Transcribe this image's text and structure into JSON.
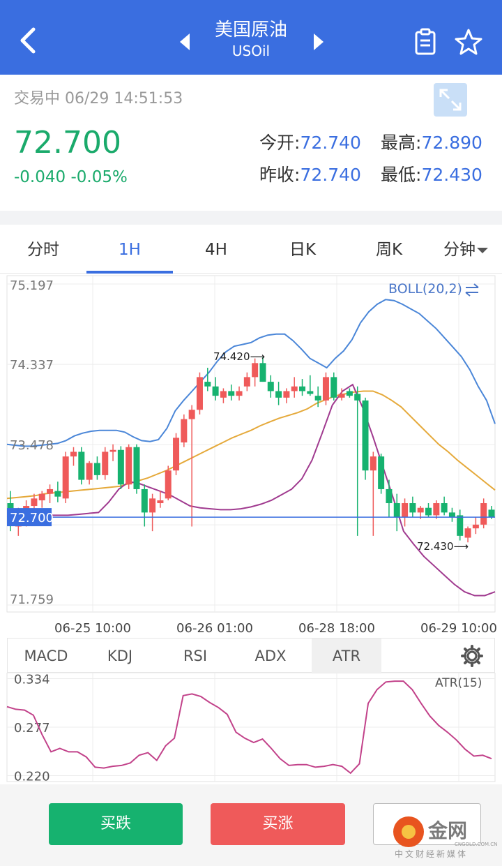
{
  "header": {
    "title": "美国原油",
    "subtitle": "USOil",
    "icons": [
      "back-icon",
      "prev-icon",
      "next-icon",
      "note-icon",
      "star-icon"
    ]
  },
  "quote": {
    "status": "交易中 06/29 14:51:53",
    "price": "72.700",
    "change": "-0.040",
    "change_pct": "-0.05%",
    "open_label": "今开:",
    "open": "72.740",
    "high_label": "最高:",
    "high": "72.890",
    "prev_close_label": "昨收:",
    "prev_close": "72.740",
    "low_label": "最低:",
    "low": "72.430",
    "colors": {
      "up": "#ef5a5a",
      "down": "#16b26f",
      "accent": "#3a6ee0"
    }
  },
  "tabs": [
    {
      "label": "分时"
    },
    {
      "label": "1H"
    },
    {
      "label": "4H"
    },
    {
      "label": "日K"
    },
    {
      "label": "周K"
    },
    {
      "label": "分钟"
    }
  ],
  "chart_data": [
    {
      "type": "candlestick",
      "indicator_label": "BOLL(20,2)",
      "indicator_icon": "swap-icon",
      "y_ticks": [
        "75.197",
        "74.337",
        "73.478",
        "72.700",
        "71.759"
      ],
      "ylim": [
        71.759,
        75.197
      ],
      "x_ticks": [
        "06-25 10:00",
        "06-26 01:00",
        "06-28 18:00",
        "06-29 10:00"
      ],
      "current_price": 72.7,
      "current_price_label": "72.700",
      "annotations": [
        {
          "text": "74.420⟶",
          "value": 74.42
        },
        {
          "text": "72.430⟶",
          "value": 72.43
        }
      ],
      "series": [
        {
          "kind": "ohlc",
          "values": [
            [
              72.85,
              72.98,
              72.55,
              72.65
            ],
            [
              72.6,
              72.8,
              72.5,
              72.75
            ],
            [
              72.7,
              72.88,
              72.6,
              72.82
            ],
            [
              72.82,
              72.95,
              72.72,
              72.9
            ],
            [
              72.88,
              72.98,
              72.8,
              72.95
            ],
            [
              72.95,
              73.05,
              72.85,
              73.0
            ],
            [
              72.98,
              73.08,
              72.86,
              72.92
            ],
            [
              72.9,
              73.4,
              72.85,
              73.35
            ],
            [
              73.35,
              73.45,
              73.25,
              73.4
            ],
            [
              73.4,
              73.45,
              73.05,
              73.1
            ],
            [
              73.1,
              73.3,
              73.05,
              73.28
            ],
            [
              73.28,
              73.35,
              73.1,
              73.15
            ],
            [
              73.15,
              73.45,
              73.1,
              73.4
            ],
            [
              73.4,
              73.48,
              73.3,
              73.42
            ],
            [
              73.42,
              73.46,
              73.0,
              73.05
            ],
            [
              73.05,
              73.48,
              73.0,
              73.45
            ],
            [
              73.45,
              73.48,
              72.95,
              73.0
            ],
            [
              73.0,
              73.05,
              72.6,
              72.75
            ],
            [
              72.75,
              72.95,
              72.55,
              72.9
            ],
            [
              72.85,
              72.98,
              72.8,
              72.88
            ],
            [
              72.9,
              73.25,
              72.88,
              73.2
            ],
            [
              73.2,
              73.6,
              73.15,
              73.55
            ],
            [
              73.5,
              73.8,
              73.45,
              73.75
            ],
            [
              73.75,
              73.9,
              72.6,
              73.85
            ],
            [
              73.85,
              74.25,
              73.8,
              74.2
            ],
            [
              74.15,
              74.3,
              74.05,
              74.1
            ],
            [
              74.1,
              74.2,
              73.95,
              74.0
            ],
            [
              73.98,
              74.08,
              73.92,
              74.05
            ],
            [
              74.05,
              74.12,
              73.95,
              74.0
            ],
            [
              74.0,
              74.1,
              73.95,
              74.05
            ],
            [
              74.1,
              74.25,
              74.05,
              74.2
            ],
            [
              74.2,
              74.4,
              74.1,
              74.35
            ],
            [
              74.35,
              74.42,
              74.15,
              74.15
            ],
            [
              74.15,
              74.22,
              73.98,
              74.05
            ],
            [
              74.05,
              74.15,
              73.9,
              73.98
            ],
            [
              73.98,
              74.08,
              73.92,
              74.05
            ],
            [
              74.05,
              74.2,
              73.98,
              74.1
            ],
            [
              74.1,
              74.18,
              74.0,
              74.05
            ],
            [
              74.05,
              74.22,
              74.0,
              74.02
            ],
            [
              74.0,
              74.1,
              73.88,
              73.95
            ],
            [
              73.95,
              74.25,
              73.9,
              74.2
            ],
            [
              74.2,
              74.25,
              73.95,
              73.98
            ],
            [
              73.98,
              74.08,
              73.95,
              74.02
            ],
            [
              74.05,
              74.08,
              73.98,
              74.0
            ],
            [
              74.02,
              74.1,
              72.5,
              73.95
            ],
            [
              73.95,
              73.98,
              73.1,
              73.2
            ],
            [
              73.2,
              73.4,
              72.5,
              73.35
            ],
            [
              73.35,
              73.38,
              72.95,
              73.0
            ],
            [
              73.0,
              73.1,
              72.7,
              72.85
            ],
            [
              72.85,
              72.95,
              72.55,
              72.7
            ],
            [
              72.7,
              72.9,
              72.6,
              72.85
            ],
            [
              72.85,
              72.92,
              72.7,
              72.75
            ],
            [
              72.75,
              72.82,
              72.68,
              72.8
            ],
            [
              72.8,
              72.85,
              72.7,
              72.72
            ],
            [
              72.72,
              72.88,
              72.68,
              72.85
            ],
            [
              72.85,
              72.92,
              72.72,
              72.75
            ],
            [
              72.75,
              72.8,
              72.65,
              72.7
            ],
            [
              72.72,
              72.78,
              72.45,
              72.5
            ],
            [
              72.48,
              72.6,
              72.43,
              72.58
            ],
            [
              72.58,
              72.7,
              72.52,
              72.62
            ],
            [
              72.62,
              72.9,
              72.58,
              72.85
            ],
            [
              72.78,
              72.82,
              72.68,
              72.7
            ]
          ]
        },
        {
          "kind": "line",
          "name": "upper",
          "color": "#4a86d8",
          "values": [
            73.48,
            73.47,
            73.46,
            73.46,
            73.47,
            73.48,
            73.49,
            73.52,
            73.57,
            73.6,
            73.62,
            73.63,
            73.63,
            73.63,
            73.61,
            73.56,
            73.52,
            73.51,
            73.53,
            73.65,
            73.84,
            73.95,
            74.05,
            74.15,
            74.25,
            74.37,
            74.47,
            74.53,
            74.55,
            74.57,
            74.62,
            74.65,
            74.66,
            74.66,
            74.59,
            74.5,
            74.4,
            74.35,
            74.3,
            74.4,
            74.48,
            74.6,
            74.78,
            74.9,
            74.98,
            75.03,
            75.02,
            74.98,
            74.93,
            74.88,
            74.8,
            74.72,
            74.62,
            74.52,
            74.42,
            74.28,
            74.1,
            73.95,
            73.7
          ]
        },
        {
          "kind": "line",
          "name": "middle",
          "color": "#e5a93a",
          "values": [
            72.9,
            72.91,
            72.92,
            72.93,
            72.95,
            72.96,
            72.97,
            72.98,
            72.99,
            73.0,
            73.01,
            73.02,
            73.03,
            73.06,
            73.09,
            73.12,
            73.16,
            73.2,
            73.25,
            73.3,
            73.35,
            73.4,
            73.45,
            73.5,
            73.55,
            73.59,
            73.63,
            73.68,
            73.72,
            73.76,
            73.79,
            73.82,
            73.86,
            73.92,
            73.96,
            74.0,
            74.02,
            74.04,
            74.05,
            74.05,
            74.01,
            73.95,
            73.88,
            73.78,
            73.68,
            73.58,
            73.48,
            73.4,
            73.31,
            73.23,
            73.15,
            73.07,
            72.99
          ]
        },
        {
          "kind": "line",
          "name": "lower",
          "color": "#a03a8f",
          "values": [
            72.7,
            72.71,
            72.72,
            72.72,
            72.72,
            72.72,
            72.72,
            72.73,
            72.74,
            72.75,
            72.86,
            73.0,
            73.08,
            73.06,
            73.02,
            72.98,
            72.94,
            72.88,
            72.82,
            72.8,
            72.79,
            72.78,
            72.78,
            72.79,
            72.81,
            72.84,
            72.88,
            72.94,
            73.0,
            73.11,
            73.31,
            73.6,
            73.9,
            74.05,
            74.12,
            73.87,
            73.56,
            73.23,
            72.9,
            72.55,
            72.41,
            72.28,
            72.18,
            72.08,
            71.98,
            71.9,
            71.86,
            71.86,
            71.9
          ]
        }
      ]
    },
    {
      "type": "line",
      "indicator_label": "ATR(15)",
      "y_ticks": [
        "0.334",
        "0.277",
        "0.220"
      ],
      "ylim": [
        0.218,
        0.336
      ],
      "series": [
        {
          "kind": "line",
          "name": "ATR",
          "color": "#c2428a",
          "values": [
            0.301,
            0.298,
            0.297,
            0.291,
            0.268,
            0.248,
            0.252,
            0.248,
            0.248,
            0.242,
            0.23,
            0.229,
            0.231,
            0.232,
            0.235,
            0.244,
            0.247,
            0.238,
            0.255,
            0.264,
            0.314,
            0.316,
            0.313,
            0.306,
            0.3,
            0.292,
            0.271,
            0.264,
            0.259,
            0.263,
            0.252,
            0.24,
            0.232,
            0.233,
            0.233,
            0.23,
            0.231,
            0.233,
            0.231,
            0.223,
            0.234,
            0.305,
            0.321,
            0.33,
            0.331,
            0.331,
            0.321,
            0.305,
            0.29,
            0.279,
            0.271,
            0.262,
            0.251,
            0.243,
            0.244,
            0.24
          ]
        }
      ]
    }
  ],
  "indicator_tabs": [
    {
      "label": "MACD"
    },
    {
      "label": "KDJ"
    },
    {
      "label": "RSI"
    },
    {
      "label": "ADX"
    },
    {
      "label": "ATR"
    }
  ],
  "buttons": {
    "sell": "买跌",
    "buy": "买涨"
  },
  "logo": {
    "text": "金网",
    "small": "CNGOLD.COM.CN",
    "tagline": "中文财经新媒体"
  }
}
